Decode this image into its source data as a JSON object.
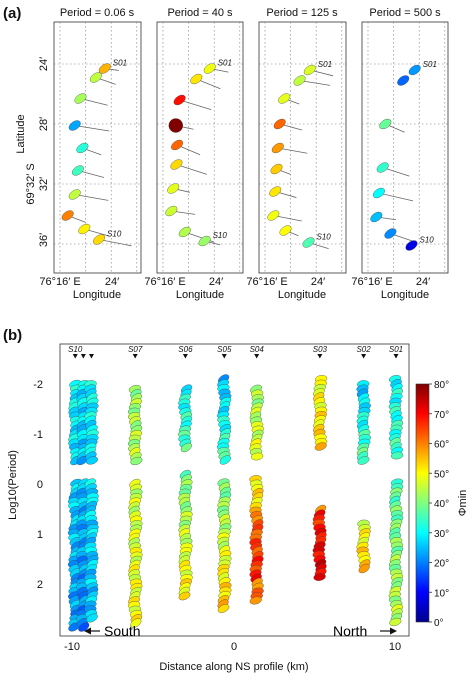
{
  "figure": {
    "panel_a_label": "(a)",
    "panel_b_label": "(b)"
  },
  "chart_data": [
    {
      "type": "scatter",
      "panel": "a",
      "ylabel": "Latitude",
      "ylabel_prefix": "69°32′ S",
      "xlabel": "Longitude",
      "x_ticks": [
        "76°16′ E",
        "24′"
      ],
      "y_ticks": [
        "24′",
        "28′",
        "32′",
        "36′"
      ],
      "subplots": [
        {
          "title": "Period = 0.06 s",
          "ellipses": [
            {
              "station": "S01",
              "lon": 23.0,
              "lat": 24.3,
              "phi": 56
            },
            {
              "lon": 21.6,
              "lat": 24.9,
              "phi": 45
            },
            {
              "lon": 19.2,
              "lat": 26.3,
              "phi": 43
            },
            {
              "lon": 18.3,
              "lat": 28.1,
              "phi": 23
            },
            {
              "lon": 19.5,
              "lat": 29.6,
              "phi": 33
            },
            {
              "lon": 18.8,
              "lat": 31.1,
              "phi": 35
            },
            {
              "lon": 18.3,
              "lat": 32.7,
              "phi": 45
            },
            {
              "lon": 17.2,
              "lat": 34.1,
              "phi": 60
            },
            {
              "lon": 19.8,
              "lat": 35.0,
              "phi": 51
            },
            {
              "station": "S10",
              "lon": 22.1,
              "lat": 35.7,
              "phi": 53
            }
          ]
        },
        {
          "title": "Period = 40 s",
          "ellipses": [
            {
              "station": "S01",
              "lon": 23.3,
              "lat": 24.3,
              "phi": 49
            },
            {
              "lon": 21.2,
              "lat": 25.0,
              "phi": 52
            },
            {
              "lon": 18.6,
              "lat": 26.4,
              "phi": 69
            },
            {
              "lon": 18.0,
              "lat": 28.1,
              "phi": 80
            },
            {
              "lon": 18.2,
              "lat": 29.4,
              "phi": 62
            },
            {
              "lon": 18.1,
              "lat": 30.7,
              "phi": 53
            },
            {
              "lon": 17.6,
              "lat": 32.3,
              "phi": 48
            },
            {
              "lon": 17.3,
              "lat": 33.8,
              "phi": 46
            },
            {
              "lon": 19.4,
              "lat": 35.2,
              "phi": 44
            },
            {
              "station": "S10",
              "lon": 22.5,
              "lat": 35.8,
              "phi": 42
            }
          ]
        },
        {
          "title": "Period = 125 s",
          "ellipses": [
            {
              "station": "S01",
              "lon": 23.0,
              "lat": 24.4,
              "phi": 47
            },
            {
              "lon": 21.4,
              "lat": 25.1,
              "phi": 45
            },
            {
              "lon": 19.0,
              "lat": 26.3,
              "phi": 48
            },
            {
              "lon": 18.3,
              "lat": 28.0,
              "phi": 62
            },
            {
              "lon": 18.0,
              "lat": 29.6,
              "phi": 58
            },
            {
              "lon": 17.8,
              "lat": 31.0,
              "phi": 54
            },
            {
              "lon": 17.6,
              "lat": 32.5,
              "phi": 52
            },
            {
              "lon": 17.3,
              "lat": 34.1,
              "phi": 49
            },
            {
              "lon": 19.2,
              "lat": 35.1,
              "phi": 50
            },
            {
              "station": "S10",
              "lon": 22.8,
              "lat": 35.9,
              "phi": 36
            }
          ]
        },
        {
          "title": "Period = 500 s",
          "ellipses": [
            {
              "station": "S01",
              "lon": 23.3,
              "lat": 24.4,
              "phi": 22
            },
            {
              "lon": 21.5,
              "lat": 25.1,
              "phi": 18
            },
            {
              "lon": 18.7,
              "lat": 28.0,
              "phi": 38
            },
            {
              "lon": 18.3,
              "lat": 30.9,
              "phi": 34
            },
            {
              "lon": 17.7,
              "lat": 32.6,
              "phi": 30
            },
            {
              "lon": 17.3,
              "lat": 34.2,
              "phi": 25
            },
            {
              "lon": 19.5,
              "lat": 35.3,
              "phi": 21
            },
            {
              "station": "S10",
              "lon": 22.8,
              "lat": 36.1,
              "phi": 8
            }
          ]
        }
      ]
    },
    {
      "type": "scatter",
      "panel": "b",
      "xlabel": "Distance along NS profile (km)",
      "ylabel": "Log10(Period)",
      "x_ticks": [
        "-10",
        "0",
        "10"
      ],
      "y_ticks": [
        "-2",
        "-1",
        "0",
        "1",
        "2"
      ],
      "xlim": [
        -11,
        11
      ],
      "ylim": [
        -2.4,
        3.0
      ],
      "annotations": {
        "south": "South",
        "north": "North"
      },
      "stations": [
        {
          "name": "S10",
          "km": -9.8
        },
        {
          "name": "S07",
          "km": -6.1
        },
        {
          "name": "S06",
          "km": -3.0
        },
        {
          "name": "S05",
          "km": -0.6
        },
        {
          "name": "S04",
          "km": 1.4
        },
        {
          "name": "S03",
          "km": 5.3
        },
        {
          "name": "S02",
          "km": 8.0
        },
        {
          "name": "S01",
          "km": 10.0
        }
      ],
      "extra_stations_km": [
        -9.3,
        -8.8
      ],
      "columns": [
        {
          "km": -9.8,
          "y_start": -2.0,
          "y_end": 2.9,
          "gaps": [
            [
              -0.45,
              -0.05
            ]
          ],
          "phi_top": 30,
          "phi_bottom": 22
        },
        {
          "km": -9.3,
          "y_start": -2.0,
          "y_end": 2.9,
          "gaps": [
            [
              -0.45,
              -0.05
            ]
          ],
          "phi_top": 28,
          "phi_bottom": 20
        },
        {
          "km": -8.8,
          "y_start": -2.0,
          "y_end": 2.7,
          "gaps": [
            [
              -0.45,
              -0.05
            ]
          ],
          "phi_top": 30,
          "phi_bottom": 25
        },
        {
          "km": -6.1,
          "y_start": -1.9,
          "y_end": 2.8,
          "gaps": [
            [
              -0.4,
              -0.05
            ]
          ],
          "phi_top": 42,
          "phi_bottom": 50
        },
        {
          "km": -3.0,
          "y_start": -1.9,
          "y_end": 2.3,
          "gaps": [
            [
              -0.65,
              -0.2
            ]
          ],
          "phi_top": 30,
          "phi_bottom": 52
        },
        {
          "km": -0.6,
          "y_start": -2.1,
          "y_end": 2.5,
          "gaps": [
            [
              -0.45,
              -0.1
            ]
          ],
          "phi_top": 25,
          "phi_bottom": 55
        },
        {
          "km": 1.4,
          "y_start": -1.9,
          "y_end": 2.4,
          "gaps": [
            [
              -0.5,
              -0.1
            ]
          ],
          "phi_top": 42,
          "phi_bottom": 62
        },
        {
          "km": 5.3,
          "y_start": -2.1,
          "y_end": 1.9,
          "gaps": [
            [
              -0.7,
              0.5
            ]
          ],
          "phi_top": 48,
          "phi_bottom": 65
        },
        {
          "km": 8.0,
          "y_start": -2.0,
          "y_end": 1.7,
          "gaps": [
            [
              -0.4,
              0.75
            ]
          ],
          "phi_top": 25,
          "phi_bottom": 55
        },
        {
          "km": 10.0,
          "y_start": -2.1,
          "y_end": 2.8,
          "gaps": [
            [
              -0.5,
              -0.1
            ]
          ],
          "phi_top": 30,
          "phi_bottom": 45
        }
      ],
      "colorbar": {
        "label": "Φmin",
        "min": 0,
        "max": 80,
        "ticks": [
          "0°",
          "10°",
          "20°",
          "30°",
          "40°",
          "50°",
          "60°",
          "70°",
          "80°"
        ]
      }
    }
  ]
}
